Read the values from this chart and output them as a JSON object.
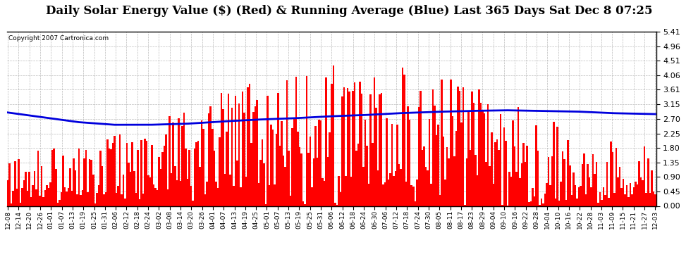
{
  "title": "Daily Solar Energy Value ($) (Red) & Running Average (Blue) Last 365 Days Sat Dec 8 07:25",
  "copyright": "Copyright 2007 Cartronica.com",
  "bar_color": "#ff0000",
  "avg_color": "#0000dd",
  "background_color": "#ffffff",
  "ylim": [
    0.0,
    5.41
  ],
  "yticks": [
    0.0,
    0.45,
    0.9,
    1.35,
    1.8,
    2.25,
    2.7,
    3.15,
    3.61,
    4.06,
    4.51,
    4.96,
    5.41
  ],
  "grid_color": "#aaaaaa",
  "title_fontsize": 12,
  "avg_linewidth": 2.0,
  "seed": 42,
  "n_days": 365,
  "xtick_labels": [
    "12-08",
    "12-14",
    "12-20",
    "12-26",
    "01-01",
    "01-07",
    "01-13",
    "01-19",
    "01-25",
    "01-31",
    "02-06",
    "02-12",
    "02-18",
    "02-24",
    "03-02",
    "03-08",
    "03-14",
    "03-20",
    "03-26",
    "04-01",
    "04-07",
    "04-13",
    "04-19",
    "04-25",
    "05-01",
    "05-07",
    "05-13",
    "05-19",
    "05-25",
    "05-31",
    "06-06",
    "06-12",
    "06-18",
    "06-24",
    "06-30",
    "07-06",
    "07-12",
    "07-18",
    "07-24",
    "07-30",
    "08-05",
    "08-11",
    "08-17",
    "08-23",
    "08-29",
    "09-04",
    "09-10",
    "09-16",
    "09-22",
    "09-28",
    "10-04",
    "10-10",
    "10-16",
    "10-22",
    "10-28",
    "11-03",
    "11-09",
    "11-15",
    "11-21",
    "11-27",
    "12-03"
  ],
  "avg_control_points": [
    [
      0,
      2.9
    ],
    [
      20,
      2.75
    ],
    [
      40,
      2.6
    ],
    [
      60,
      2.52
    ],
    [
      80,
      2.52
    ],
    [
      100,
      2.55
    ],
    [
      120,
      2.62
    ],
    [
      140,
      2.68
    ],
    [
      160,
      2.72
    ],
    [
      180,
      2.78
    ],
    [
      200,
      2.82
    ],
    [
      220,
      2.88
    ],
    [
      240,
      2.92
    ],
    [
      260,
      2.95
    ],
    [
      280,
      2.97
    ],
    [
      300,
      2.95
    ],
    [
      320,
      2.93
    ],
    [
      340,
      2.88
    ],
    [
      365,
      2.85
    ]
  ]
}
